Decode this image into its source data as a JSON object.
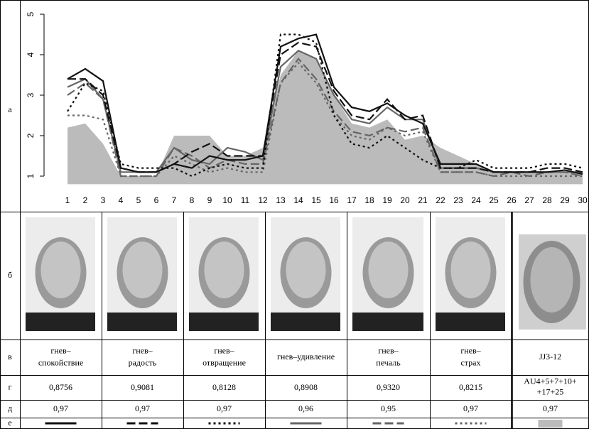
{
  "row_labels": [
    "а",
    "б",
    "в",
    "г",
    "д",
    "е"
  ],
  "chart_data": {
    "type": "line",
    "x": [
      1,
      2,
      3,
      4,
      5,
      6,
      7,
      8,
      9,
      10,
      11,
      12,
      13,
      14,
      15,
      16,
      17,
      18,
      19,
      20,
      21,
      22,
      23,
      24,
      25,
      26,
      27,
      28,
      29,
      30
    ],
    "ylim": [
      0.8,
      5.1
    ],
    "yticks": [
      1,
      2,
      3,
      4,
      5
    ],
    "series": [
      {
        "color": "#111111",
        "dash": "none",
        "values": [
          3.4,
          3.65,
          3.35,
          1.2,
          1.1,
          1.1,
          1.3,
          1.2,
          1.5,
          1.4,
          1.4,
          1.5,
          4.2,
          4.4,
          4.5,
          3.2,
          2.7,
          2.6,
          2.8,
          2.5,
          2.3,
          1.3,
          1.3,
          1.3,
          1.1,
          1.1,
          1.1,
          1.1,
          1.15,
          1.05
        ]
      },
      {
        "color": "#111111",
        "dash": "12 5",
        "values": [
          3.4,
          3.4,
          3.0,
          1.2,
          1.1,
          1.1,
          1.3,
          1.6,
          1.8,
          1.5,
          1.5,
          1.5,
          4.0,
          4.3,
          4.2,
          3.1,
          2.5,
          2.4,
          2.9,
          2.4,
          2.5,
          1.2,
          1.2,
          1.2,
          1.1,
          1.1,
          1.1,
          1.2,
          1.2,
          1.1
        ]
      },
      {
        "color": "#111111",
        "dash": "3 4",
        "values": [
          2.6,
          3.3,
          3.1,
          1.3,
          1.2,
          1.2,
          1.2,
          1.0,
          1.2,
          1.3,
          1.2,
          1.2,
          4.5,
          4.5,
          4.3,
          2.5,
          1.8,
          1.7,
          2.0,
          1.7,
          1.4,
          1.2,
          1.2,
          1.4,
          1.2,
          1.2,
          1.2,
          1.3,
          1.3,
          1.2
        ]
      },
      {
        "color": "#666666",
        "dash": "none",
        "values": [
          3.2,
          3.4,
          2.9,
          1.1,
          1.1,
          1.1,
          1.7,
          1.4,
          1.3,
          1.7,
          1.6,
          1.4,
          3.7,
          4.1,
          3.9,
          3.0,
          2.4,
          2.3,
          2.7,
          2.4,
          2.4,
          1.2,
          1.2,
          1.2,
          1.1,
          1.1,
          1.1,
          1.1,
          1.1,
          1.1
        ]
      },
      {
        "color": "#666666",
        "dash": "12 5",
        "values": [
          3.0,
          3.3,
          2.9,
          1.0,
          1.0,
          1.0,
          1.7,
          1.5,
          1.2,
          1.4,
          1.3,
          1.3,
          3.3,
          3.9,
          3.4,
          2.6,
          2.1,
          2.0,
          2.2,
          2.1,
          2.2,
          1.1,
          1.1,
          1.1,
          1.0,
          1.1,
          1.0,
          1.1,
          1.1,
          1.0
        ]
      },
      {
        "color": "#666666",
        "dash": "3 4",
        "values": [
          2.5,
          2.5,
          2.4,
          1.0,
          1.0,
          1.0,
          1.5,
          1.3,
          1.1,
          1.2,
          1.1,
          1.1,
          3.3,
          3.8,
          3.3,
          2.5,
          2.0,
          1.9,
          2.2,
          2.0,
          2.1,
          1.1,
          1.1,
          1.1,
          1.0,
          1.0,
          1.0,
          1.0,
          1.0,
          1.0
        ]
      },
      {
        "color": "#bbbbbb",
        "fill": true,
        "values": [
          2.2,
          2.3,
          1.8,
          1.0,
          1.0,
          1.0,
          2.0,
          2.0,
          2.0,
          1.5,
          1.5,
          1.7,
          3.5,
          4.1,
          3.9,
          3.0,
          2.3,
          2.2,
          2.4,
          1.9,
          2.0,
          1.7,
          1.5,
          1.3,
          1.1,
          1.1,
          1.1,
          1.1,
          1.1,
          1.1
        ]
      }
    ]
  },
  "table": {
    "columns": [
      {
        "label": [
          "гнев–",
          "спокойствие"
        ],
        "r": "0,8756",
        "d": "0,97"
      },
      {
        "label": [
          "гнев–",
          "радость"
        ],
        "r": "0,9081",
        "d": "0,97"
      },
      {
        "label": [
          "гнев–",
          "отвращение"
        ],
        "r": "0,8128",
        "d": "0,97"
      },
      {
        "label": [
          "гнев–удивление"
        ],
        "r": "0,8908",
        "d": "0,96"
      },
      {
        "label": [
          "гнев–",
          "печаль"
        ],
        "r": "0,9320",
        "d": "0,95"
      },
      {
        "label": [
          "гнев–",
          "страх"
        ],
        "r": "0,8215",
        "d": "0,97"
      },
      {
        "label": [
          "JJ3-12"
        ],
        "r": [
          "AU4+5+7+10+",
          "+17+25"
        ],
        "d": "0,97"
      }
    ]
  }
}
